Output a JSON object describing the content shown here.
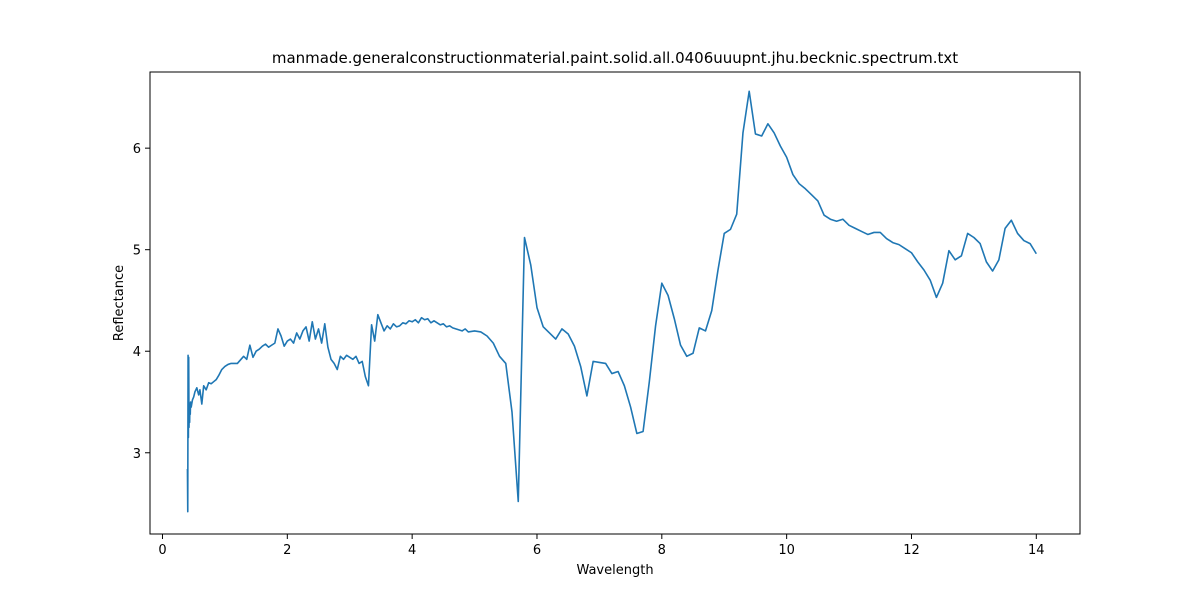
{
  "chart_data": {
    "type": "line",
    "title": "manmade.generalconstructionmaterial.paint.solid.all.0406uuupnt.jhu.becknic.spectrum.txt",
    "xlabel": "Wavelength",
    "ylabel": "Reflectance",
    "xlim": [
      -0.2,
      14.7
    ],
    "ylim": [
      2.2,
      6.75
    ],
    "xticks": [
      0,
      2,
      4,
      6,
      8,
      10,
      12,
      14
    ],
    "yticks": [
      3,
      4,
      5,
      6
    ],
    "grid": false,
    "color": "#1f77b4",
    "series": [
      {
        "x": [
          0.4,
          0.405,
          0.41,
          0.415,
          0.42,
          0.425,
          0.43,
          0.435,
          0.44,
          0.445,
          0.45,
          0.46,
          0.48,
          0.5,
          0.52,
          0.55,
          0.58,
          0.6,
          0.63,
          0.66,
          0.7,
          0.74,
          0.78,
          0.82,
          0.86,
          0.9,
          0.95,
          1.0,
          1.05,
          1.1,
          1.2,
          1.3,
          1.35,
          1.4,
          1.45,
          1.5,
          1.55,
          1.6,
          1.65,
          1.7,
          1.75,
          1.8,
          1.85,
          1.9,
          1.95,
          2.0,
          2.05,
          2.1,
          2.15,
          2.2,
          2.25,
          2.3,
          2.35,
          2.4,
          2.45,
          2.5,
          2.55,
          2.6,
          2.65,
          2.7,
          2.75,
          2.8,
          2.85,
          2.9,
          2.95,
          3.0,
          3.05,
          3.1,
          3.15,
          3.2,
          3.25,
          3.3,
          3.35,
          3.4,
          3.45,
          3.5,
          3.55,
          3.6,
          3.65,
          3.7,
          3.75,
          3.8,
          3.85,
          3.9,
          3.95,
          4.0,
          4.05,
          4.1,
          4.15,
          4.2,
          4.25,
          4.3,
          4.35,
          4.4,
          4.45,
          4.5,
          4.55,
          4.6,
          4.65,
          4.7,
          4.75,
          4.8,
          4.85,
          4.9,
          5.0,
          5.1,
          5.2,
          5.3,
          5.4,
          5.5,
          5.6,
          5.7,
          5.8,
          5.9,
          6.0,
          6.1,
          6.2,
          6.3,
          6.4,
          6.5,
          6.6,
          6.7,
          6.8,
          6.9,
          7.0,
          7.1,
          7.2,
          7.3,
          7.4,
          7.5,
          7.6,
          7.7,
          7.8,
          7.9,
          8.0,
          8.1,
          8.2,
          8.3,
          8.4,
          8.5,
          8.6,
          8.7,
          8.8,
          8.9,
          9.0,
          9.1,
          9.2,
          9.3,
          9.4,
          9.5,
          9.6,
          9.7,
          9.8,
          9.9,
          10.0,
          10.1,
          10.2,
          10.3,
          10.4,
          10.5,
          10.6,
          10.7,
          10.8,
          10.9,
          11.0,
          11.1,
          11.2,
          11.3,
          11.4,
          11.5,
          11.6,
          11.7,
          11.8,
          11.9,
          12.0,
          12.1,
          12.2,
          12.3,
          12.4,
          12.5,
          12.6,
          12.7,
          12.8,
          12.9,
          13.0,
          13.1,
          13.2,
          13.3,
          13.4,
          13.5,
          13.6,
          13.7,
          13.8,
          13.9,
          14.0
        ],
        "y": [
          2.84,
          2.42,
          3.96,
          3.15,
          3.94,
          3.25,
          3.45,
          3.3,
          3.48,
          3.38,
          3.5,
          3.45,
          3.52,
          3.55,
          3.6,
          3.64,
          3.57,
          3.62,
          3.48,
          3.66,
          3.62,
          3.69,
          3.68,
          3.7,
          3.72,
          3.76,
          3.82,
          3.85,
          3.87,
          3.88,
          3.88,
          3.95,
          3.92,
          4.06,
          3.94,
          4.0,
          4.02,
          4.05,
          4.07,
          4.04,
          4.06,
          4.08,
          4.22,
          4.15,
          4.05,
          4.1,
          4.12,
          4.08,
          4.18,
          4.12,
          4.2,
          4.24,
          4.1,
          4.29,
          4.12,
          4.22,
          4.08,
          4.27,
          4.04,
          3.92,
          3.88,
          3.82,
          3.95,
          3.92,
          3.96,
          3.94,
          3.92,
          3.95,
          3.88,
          3.9,
          3.75,
          3.66,
          4.26,
          4.1,
          4.36,
          4.28,
          4.2,
          4.25,
          4.22,
          4.27,
          4.24,
          4.25,
          4.28,
          4.27,
          4.3,
          4.29,
          4.31,
          4.28,
          4.33,
          4.31,
          4.32,
          4.28,
          4.3,
          4.28,
          4.26,
          4.27,
          4.24,
          4.25,
          4.23,
          4.22,
          4.21,
          4.2,
          4.22,
          4.19,
          4.2,
          4.19,
          4.15,
          4.08,
          3.95,
          3.88,
          3.4,
          2.52,
          5.12,
          4.85,
          4.43,
          4.24,
          4.18,
          4.12,
          4.22,
          4.17,
          4.05,
          3.85,
          3.56,
          3.9,
          3.89,
          3.88,
          3.78,
          3.8,
          3.66,
          3.45,
          3.19,
          3.21,
          3.7,
          4.25,
          4.67,
          4.55,
          4.32,
          4.06,
          3.95,
          3.98,
          4.23,
          4.2,
          4.4,
          4.8,
          5.16,
          5.2,
          5.35,
          6.15,
          6.56,
          6.14,
          6.12,
          6.24,
          6.15,
          6.02,
          5.91,
          5.74,
          5.65,
          5.6,
          5.54,
          5.48,
          5.34,
          5.3,
          5.28,
          5.3,
          5.24,
          5.21,
          5.18,
          5.15,
          5.17,
          5.17,
          5.11,
          5.07,
          5.05,
          5.01,
          4.97,
          4.88,
          4.8,
          4.7,
          4.53,
          4.67,
          4.99,
          4.9,
          4.94,
          5.16,
          5.12,
          5.06,
          4.88,
          4.79,
          4.9,
          5.21,
          5.29,
          5.16,
          5.09,
          5.06,
          4.96
        ]
      }
    ]
  }
}
